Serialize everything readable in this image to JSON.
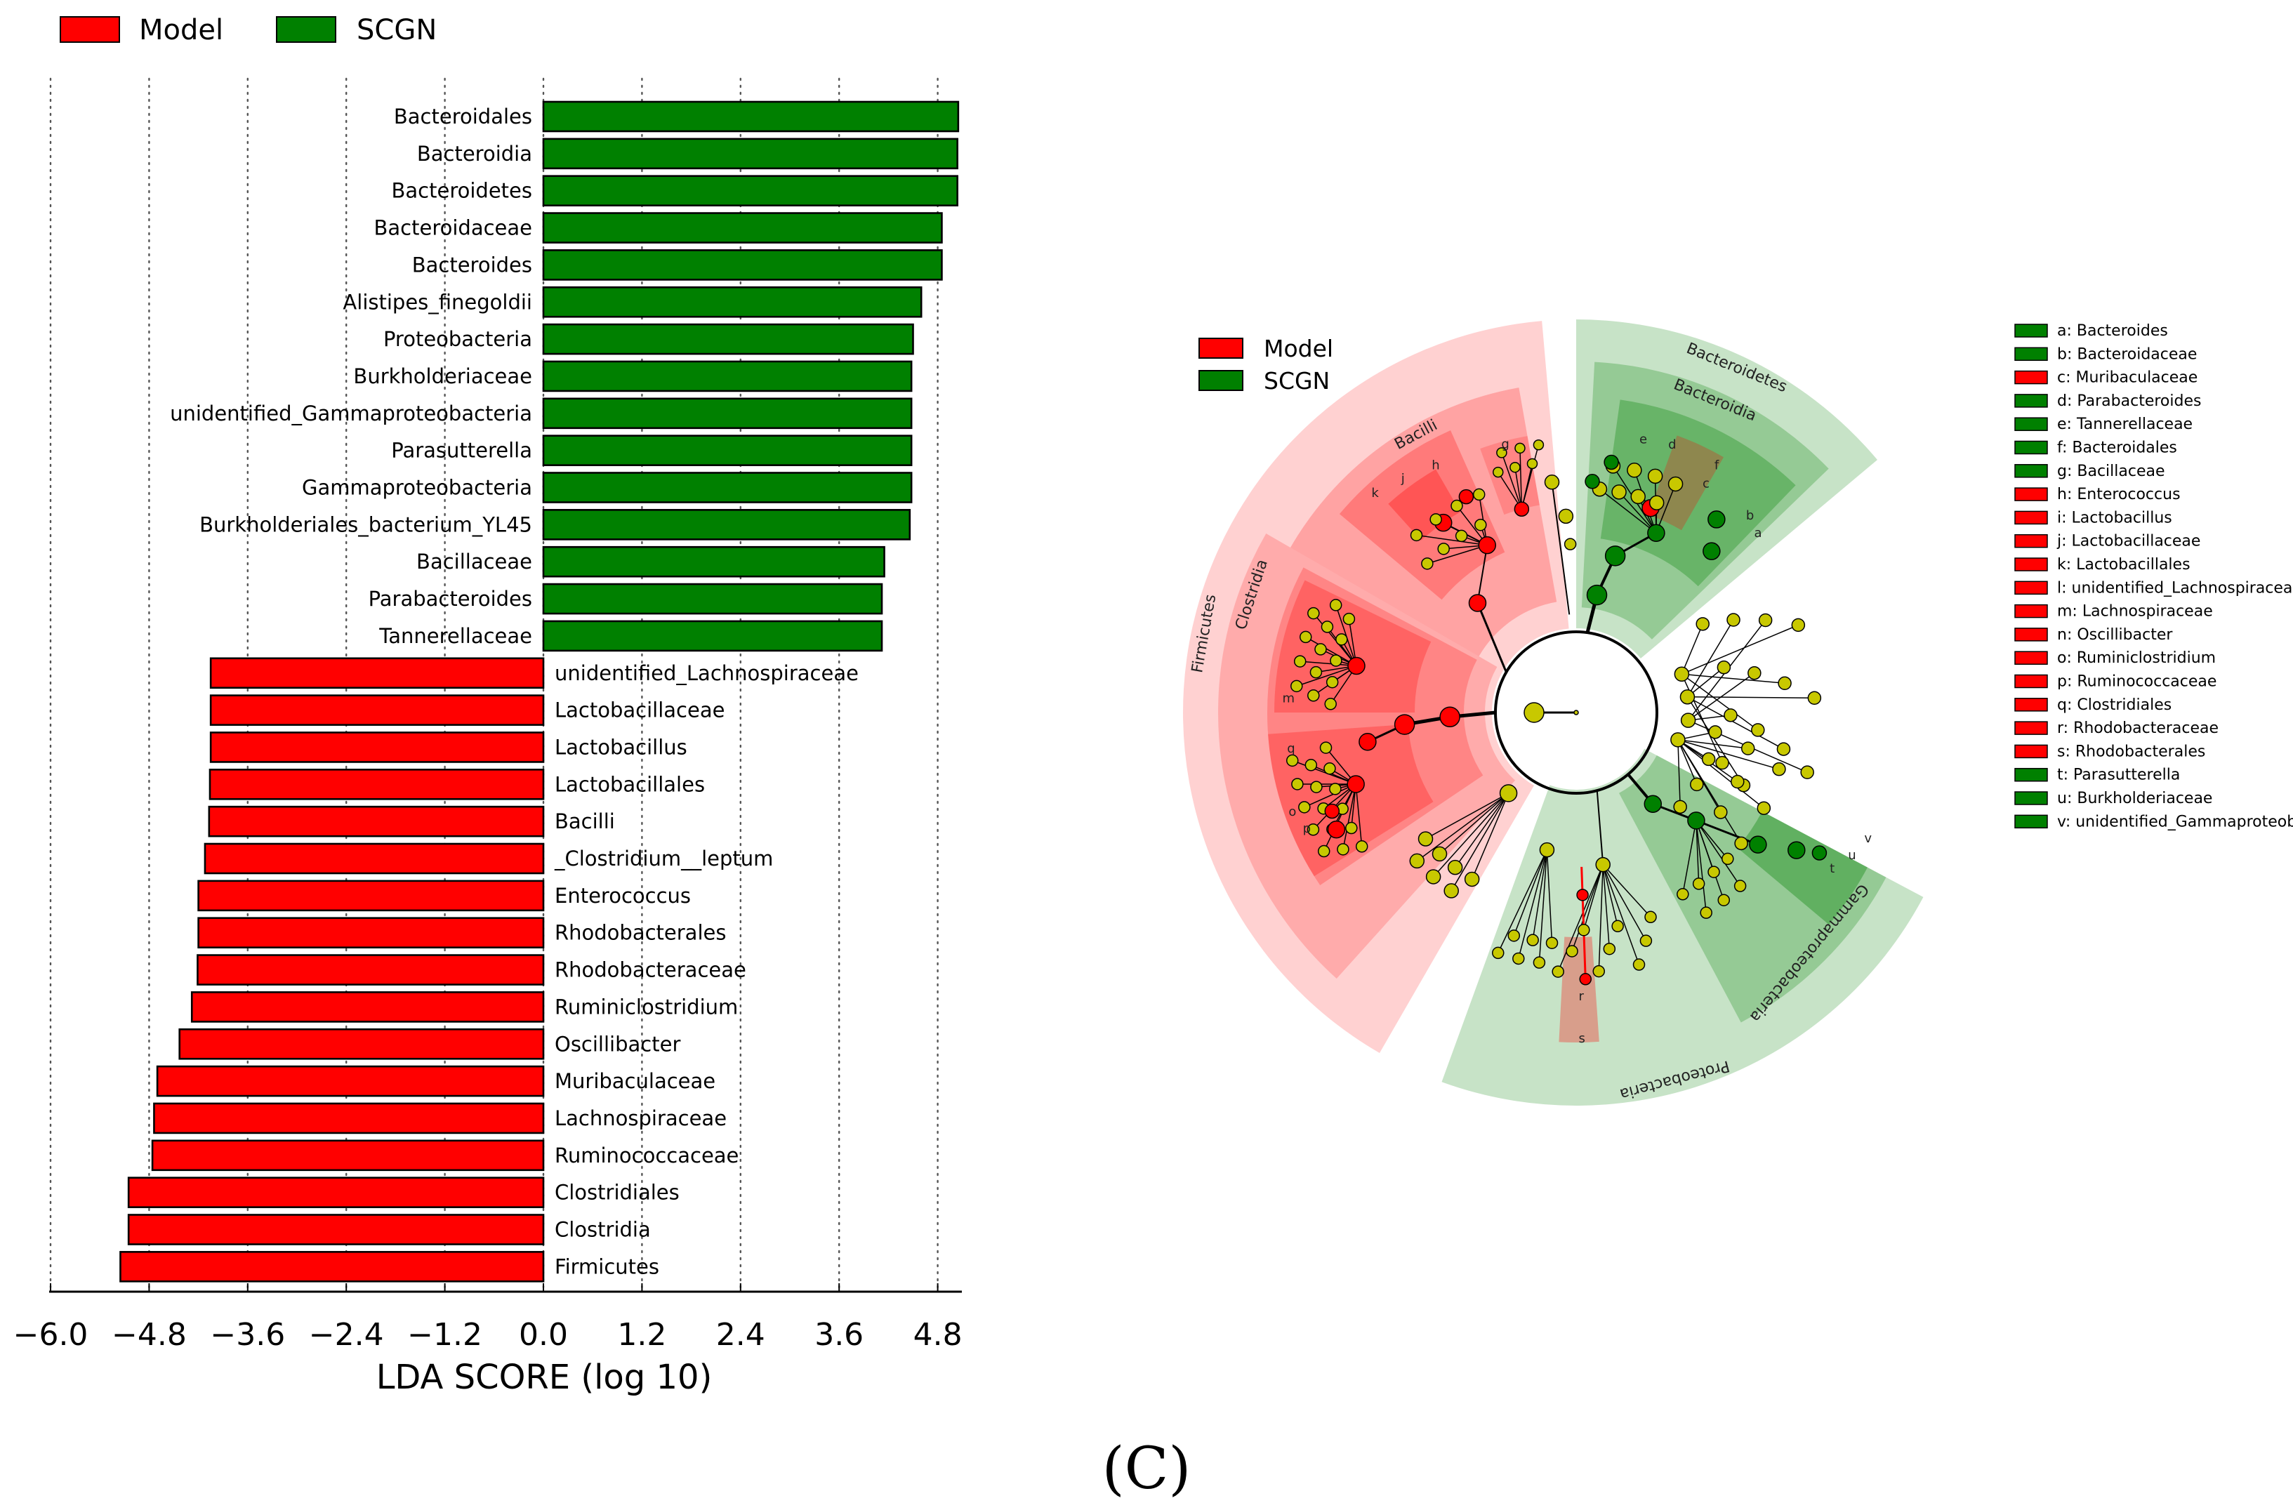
{
  "panel_label": "(C)",
  "colors": {
    "model": "#ff0000",
    "scgn": "#008000",
    "node_yellow": "#c8c800"
  },
  "bar_legend": [
    {
      "label": "Model",
      "color": "#ff0000"
    },
    {
      "label": "SCGN",
      "color": "#008000"
    }
  ],
  "chart_data": {
    "type": "bar",
    "orientation": "horizontal",
    "xlabel": "LDA SCORE (log 10)",
    "xlim": [
      -6.0,
      5.0
    ],
    "ticks": [
      -6.0,
      -4.8,
      -3.6,
      -2.4,
      -1.2,
      0.0,
      1.2,
      2.4,
      3.6,
      4.8
    ],
    "tick_labels": [
      "−6.0",
      "−4.8",
      "−3.6",
      "−2.4",
      "−1.2",
      "0.0",
      "1.2",
      "2.4",
      "3.6",
      "4.8"
    ],
    "series": [
      {
        "name": "SCGN",
        "color": "#008000",
        "categories": [
          "Bacteroidales",
          "Bacteroidia",
          "Bacteroidetes",
          "Bacteroidaceae",
          "Bacteroides",
          "Alistipes_finegoldii",
          "Proteobacteria",
          "Burkholderiaceae",
          "unidentified_Gammaproteobacteria",
          "Parasutterella",
          "Gammaproteobacteria",
          "Burkholderiales_bacterium_YL45",
          "Bacillaceae",
          "Parabacteroides",
          "Tannerellaceae"
        ],
        "values": [
          5.05,
          5.04,
          5.04,
          4.85,
          4.85,
          4.6,
          4.5,
          4.48,
          4.48,
          4.48,
          4.48,
          4.46,
          4.15,
          4.12,
          4.12
        ]
      },
      {
        "name": "Model",
        "color": "#ff0000",
        "categories": [
          "unidentified_Lachnospiraceae",
          "Lactobacillaceae",
          "Lactobacillus",
          "Lactobacillales",
          "Bacilli",
          "_Clostridium__leptum",
          "Enterococcus",
          "Rhodobacterales",
          "Rhodobacteraceae",
          "Ruminiclostridium",
          "Oscillibacter",
          "Muribaculaceae",
          "Lachnospiraceae",
          "Ruminococcaceae",
          "Clostridiales",
          "Clostridia",
          "Firmicutes"
        ],
        "values": [
          -4.05,
          -4.05,
          -4.05,
          -4.06,
          -4.07,
          -4.12,
          -4.2,
          -4.2,
          -4.21,
          -4.28,
          -4.43,
          -4.7,
          -4.74,
          -4.76,
          -5.05,
          -5.05,
          -5.15
        ]
      }
    ]
  },
  "cladogram": {
    "legend": [
      {
        "label": "Model",
        "color": "#ff0000"
      },
      {
        "label": "SCGN",
        "color": "#008000"
      }
    ],
    "clade_labels": [
      "Firmicutes",
      "Clostridia",
      "Bacilli",
      "Bacteroidetes",
      "Bacteroidia",
      "Proteobacteria",
      "Gammaproteobacteria"
    ],
    "node_letters": [
      "m",
      "q",
      "p",
      "o",
      "k",
      "j",
      "h",
      "g",
      "e",
      "d",
      "f",
      "c",
      "b",
      "a",
      "t",
      "u",
      "v",
      "r",
      "s"
    ],
    "key": [
      {
        "text": "a: Bacteroides",
        "color": "#008000"
      },
      {
        "text": "b: Bacteroidaceae",
        "color": "#008000"
      },
      {
        "text": "c: Muribaculaceae",
        "color": "#ff0000"
      },
      {
        "text": "d: Parabacteroides",
        "color": "#008000"
      },
      {
        "text": "e: Tannerellaceae",
        "color": "#008000"
      },
      {
        "text": "f: Bacteroidales",
        "color": "#008000"
      },
      {
        "text": "g: Bacillaceae",
        "color": "#008000"
      },
      {
        "text": "h: Enterococcus",
        "color": "#ff0000"
      },
      {
        "text": "i: Lactobacillus",
        "color": "#ff0000"
      },
      {
        "text": "j: Lactobacillaceae",
        "color": "#ff0000"
      },
      {
        "text": "k: Lactobacillales",
        "color": "#ff0000"
      },
      {
        "text": "l: unidentified_Lachnospiraceae",
        "color": "#ff0000"
      },
      {
        "text": "m: Lachnospiraceae",
        "color": "#ff0000"
      },
      {
        "text": "n: Oscillibacter",
        "color": "#ff0000"
      },
      {
        "text": "o: Ruminiclostridium",
        "color": "#ff0000"
      },
      {
        "text": "p: Ruminococcaceae",
        "color": "#ff0000"
      },
      {
        "text": "q: Clostridiales",
        "color": "#ff0000"
      },
      {
        "text": "r: Rhodobacteraceae",
        "color": "#ff0000"
      },
      {
        "text": "s: Rhodobacterales",
        "color": "#ff0000"
      },
      {
        "text": "t: Parasutterella",
        "color": "#008000"
      },
      {
        "text": "u: Burkholderiaceae",
        "color": "#008000"
      },
      {
        "text": "v: unidentified_Gammaproteobacteria",
        "color": "#008000"
      }
    ]
  }
}
